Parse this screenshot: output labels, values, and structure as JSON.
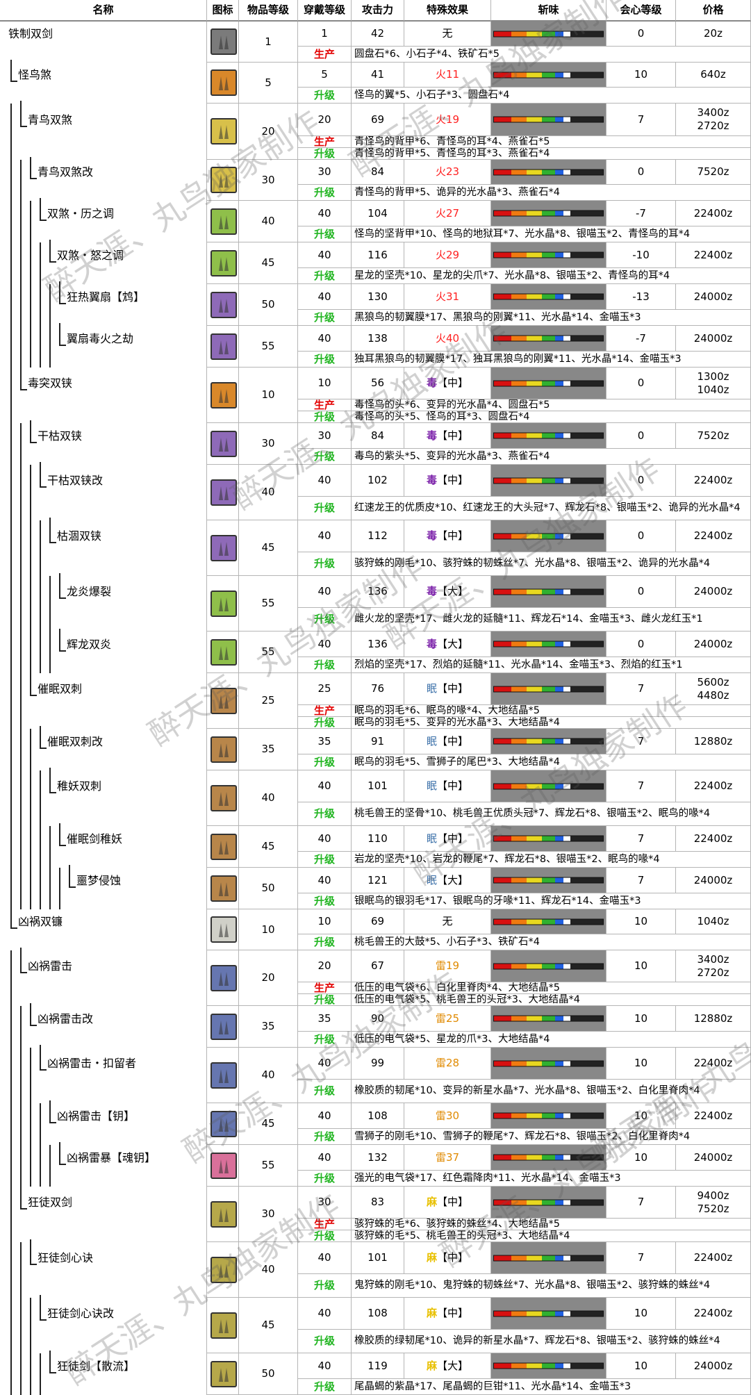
{
  "headers": {
    "name": "名称",
    "icon": "图标",
    "rarity": "物品等级",
    "slot": "穿戴等级",
    "attack": "攻击力",
    "special": "特殊效果",
    "sharpness": "斩味",
    "crit": "会心等级",
    "price": "价格"
  },
  "labels": {
    "produce": "生产",
    "upgrade": "升级"
  },
  "watermark": "醉天涯、丸鸟独家制作",
  "rows": [
    {
      "name": "铁制双剑",
      "depth": 0,
      "rarity": "1",
      "slot": "1",
      "atk": "42",
      "eff": "无",
      "effType": "none",
      "crit": "0",
      "price": [
        "20z"
      ],
      "produce": "圆盘石*6、小石子*4、铁矿石*5",
      "upgrade": "",
      "icon": "gray"
    },
    {
      "name": "怪鸟煞",
      "depth": 1,
      "rarity": "5",
      "slot": "5",
      "atk": "41",
      "eff": "火",
      "effVal": "11",
      "effType": "fire",
      "crit": "10",
      "price": [
        "640z"
      ],
      "produce": "",
      "upgrade": "怪鸟的翼*5、小石子*3、圆盘石*4",
      "icon": "orange"
    },
    {
      "name": "青鸟双煞",
      "depth": 2,
      "rarity": "20",
      "slot": "20",
      "atk": "69",
      "eff": "火",
      "effVal": "19",
      "effType": "fire",
      "crit": "7",
      "price": [
        "3400z",
        "2720z"
      ],
      "produce": "青怪鸟的背甲*6、青怪鸟的耳*4、燕雀石*5",
      "upgrade": "青怪鸟的背甲*5、青怪鸟的耳*3、燕雀石*4",
      "icon": "yellow"
    },
    {
      "name": "青鸟双煞改",
      "depth": 3,
      "rarity": "30",
      "slot": "30",
      "atk": "84",
      "eff": "火",
      "effVal": "23",
      "effType": "fire",
      "crit": "0",
      "price": [
        "7520z"
      ],
      "produce": "",
      "upgrade": "青怪鸟的背甲*5、诡异的光水晶*3、燕雀石*4",
      "icon": "yellow"
    },
    {
      "name": "双煞・历之调",
      "depth": 4,
      "rarity": "40",
      "slot": "40",
      "atk": "104",
      "eff": "火",
      "effVal": "27",
      "effType": "fire",
      "crit": "-7",
      "price": [
        "22400z"
      ],
      "produce": "",
      "upgrade": "怪鸟的坚背甲*10、怪鸟的地狱耳*7、光水晶*8、银喵玉*2、青怪鸟的耳*4",
      "icon": "green"
    },
    {
      "name": "双煞・怒之调",
      "depth": 5,
      "rarity": "45",
      "slot": "40",
      "atk": "116",
      "eff": "火",
      "effVal": "29",
      "effType": "fire",
      "crit": "-10",
      "price": [
        "22400z"
      ],
      "produce": "",
      "upgrade": "星龙的坚壳*10、星龙的尖爪*7、光水晶*8、银喵玉*2、青怪鸟的耳*4",
      "icon": "green"
    },
    {
      "name": "狂热翼扇【鸩】",
      "depth": 6,
      "rarity": "50",
      "slot": "40",
      "atk": "130",
      "eff": "火",
      "effVal": "31",
      "effType": "fire",
      "crit": "-13",
      "price": [
        "24000z"
      ],
      "produce": "",
      "upgrade": "黑狼鸟的韧翼膜*17、黑狼鸟的刚翼*11、光水晶*14、金喵玉*3",
      "icon": "purple"
    },
    {
      "name": "翼扇毒火之劫",
      "depth": 6,
      "rarity": "55",
      "slot": "40",
      "atk": "138",
      "eff": "火",
      "effVal": "40",
      "effType": "fire",
      "crit": "-7",
      "price": [
        "24000z"
      ],
      "produce": "",
      "upgrade": "独耳黑狼鸟的韧翼膜*17、独耳黑狼鸟的刚翼*11、光水晶*14、金喵玉*3",
      "icon": "purple"
    },
    {
      "name": "毒突双铗",
      "depth": 2,
      "rarity": "10",
      "slot": "10",
      "atk": "56",
      "eff": "毒",
      "effVal": "【中】",
      "effType": "poison",
      "crit": "0",
      "price": [
        "1300z",
        "1040z"
      ],
      "produce": "毒怪鸟的头*6、变异的光水晶*4、圆盘石*5",
      "upgrade": "毒怪鸟的头*5、怪鸟的耳*3、圆盘石*4",
      "icon": "orange"
    },
    {
      "name": "干枯双铗",
      "depth": 3,
      "rarity": "30",
      "slot": "30",
      "atk": "84",
      "eff": "毒",
      "effVal": "【中】",
      "effType": "poison",
      "crit": "0",
      "price": [
        "7520z"
      ],
      "produce": "",
      "upgrade": "毒鸟的紫头*5、变异的光水晶*3、燕雀石*4",
      "icon": "purple"
    },
    {
      "name": "干枯双铗改",
      "depth": 4,
      "rarity": "40",
      "slot": "40",
      "atk": "102",
      "eff": "毒",
      "effVal": "【中】",
      "effType": "poison",
      "crit": "0",
      "price": [
        "22400z"
      ],
      "produce": "",
      "upgrade": "红速龙王的优质皮*10、红速龙王的大头冠*7、辉龙石*8、银喵玉*2、诡异的光水晶*4",
      "icon": "purple"
    },
    {
      "name": "枯涸双铗",
      "depth": 5,
      "rarity": "45",
      "slot": "40",
      "atk": "112",
      "eff": "毒",
      "effVal": "【中】",
      "effType": "poison",
      "crit": "0",
      "price": [
        "22400z"
      ],
      "produce": "",
      "upgrade": "骇狩蛛的刚毛*10、骇狩蛛的韧蛛丝*7、光水晶*8、银喵玉*2、诡异的光水晶*4",
      "icon": "purple"
    },
    {
      "name": "龙炎爆裂",
      "depth": 6,
      "rarity": "55",
      "slot": "40",
      "atk": "136",
      "eff": "毒",
      "effVal": "【大】",
      "effType": "poison",
      "crit": "0",
      "price": [
        "24000z"
      ],
      "produce": "",
      "upgrade": "雌火龙的坚壳*17、雌火龙的延髓*11、辉龙石*14、金喵玉*3、雌火龙红玉*1",
      "icon": "green"
    },
    {
      "name": "辉龙双炎",
      "depth": 6,
      "rarity": "55",
      "slot": "40",
      "atk": "136",
      "eff": "毒",
      "effVal": "【大】",
      "effType": "poison",
      "crit": "0",
      "price": [
        "24000z"
      ],
      "produce": "",
      "upgrade": "烈焰的坚壳*17、烈焰的延髓*11、光水晶*14、金喵玉*3、烈焰的红玉*1",
      "icon": "green"
    },
    {
      "name": "催眠双刺",
      "depth": 3,
      "rarity": "25",
      "slot": "25",
      "atk": "76",
      "eff": "眠",
      "effVal": "【中】",
      "effType": "sleep",
      "crit": "7",
      "price": [
        "5600z",
        "4480z"
      ],
      "produce": "眠鸟的羽毛*6、眠鸟的喙*4、大地结晶*5",
      "upgrade": "眠鸟的羽毛*5、变异的光水晶*3、大地结晶*4",
      "icon": "brown"
    },
    {
      "name": "催眠双刺改",
      "depth": 4,
      "rarity": "35",
      "slot": "35",
      "atk": "91",
      "eff": "眠",
      "effVal": "【中】",
      "effType": "sleep",
      "crit": "7",
      "price": [
        "12880z"
      ],
      "produce": "",
      "upgrade": "眠鸟的羽毛*5、雪狮子的尾巴*3、大地结晶*4",
      "icon": "brown"
    },
    {
      "name": "稚妖双刺",
      "depth": 5,
      "rarity": "40",
      "slot": "40",
      "atk": "101",
      "eff": "眠",
      "effVal": "【中】",
      "effType": "sleep",
      "crit": "7",
      "price": [
        "22400z"
      ],
      "produce": "",
      "upgrade": "桃毛兽王的坚骨*10、桃毛兽王优质头冠*7、辉龙石*8、银喵玉*2、眠鸟的喙*4",
      "icon": "brown"
    },
    {
      "name": "催眠剑稚妖",
      "depth": 6,
      "rarity": "45",
      "slot": "40",
      "atk": "110",
      "eff": "眠",
      "effVal": "【中】",
      "effType": "sleep",
      "crit": "7",
      "price": [
        "22400z"
      ],
      "produce": "",
      "upgrade": "岩龙的坚壳*10、岩龙的鞭尾*7、辉龙石*8、银喵玉*2、眠鸟的喙*4",
      "icon": "brown"
    },
    {
      "name": "噩梦侵蚀",
      "depth": 7,
      "rarity": "50",
      "slot": "40",
      "atk": "121",
      "eff": "眠",
      "effVal": "【大】",
      "effType": "sleep",
      "crit": "7",
      "price": [
        "24000z"
      ],
      "produce": "",
      "upgrade": "银眠鸟的银羽毛*17、银眠鸟的牙喙*11、辉龙石*14、金喵玉*3",
      "icon": "brown"
    },
    {
      "name": "凶祸双镰",
      "depth": 1,
      "rarity": "10",
      "slot": "10",
      "atk": "69",
      "eff": "无",
      "effType": "none",
      "crit": "10",
      "price": [
        "1040z"
      ],
      "produce": "",
      "upgrade": "桃毛兽王的大鼓*5、小石子*3、铁矿石*4",
      "icon": "white"
    },
    {
      "name": "凶祸雷击",
      "depth": 2,
      "rarity": "20",
      "slot": "20",
      "atk": "67",
      "eff": "雷",
      "effVal": "19",
      "effType": "thunder",
      "crit": "10",
      "price": [
        "3400z",
        "2720z"
      ],
      "produce": "低压的电气袋*6、白化里脊肉*4、大地结晶*5",
      "upgrade": "低压的电气袋*5、桃毛兽王的头冠*3、大地结晶*4",
      "icon": "navy"
    },
    {
      "name": "凶祸雷击改",
      "depth": 3,
      "rarity": "35",
      "slot": "35",
      "atk": "90",
      "eff": "雷",
      "effVal": "25",
      "effType": "thunder",
      "crit": "10",
      "price": [
        "12880z"
      ],
      "produce": "",
      "upgrade": "低压的电气袋*5、星龙的爪*3、大地结晶*4",
      "icon": "navy"
    },
    {
      "name": "凶祸雷击・扣留者",
      "depth": 4,
      "rarity": "40",
      "slot": "40",
      "atk": "99",
      "eff": "雷",
      "effVal": "28",
      "effType": "thunder",
      "crit": "10",
      "price": [
        "22400z"
      ],
      "produce": "",
      "upgrade": "橡胶质的韧尾*10、变异的新星水晶*7、光水晶*8、银喵玉*2、白化里脊肉*4",
      "icon": "navy"
    },
    {
      "name": "凶祸雷击【钥】",
      "depth": 5,
      "rarity": "45",
      "slot": "40",
      "atk": "108",
      "eff": "雷",
      "effVal": "30",
      "effType": "thunder",
      "crit": "10",
      "price": [
        "22400z"
      ],
      "produce": "",
      "upgrade": "雪狮子的刚毛*10、雪狮子的鞭尾*7、辉龙石*8、银喵玉*2、白化里脊肉*4",
      "icon": "navy"
    },
    {
      "name": "凶祸雷暴【魂钥】",
      "depth": 6,
      "rarity": "55",
      "slot": "40",
      "atk": "132",
      "eff": "雷",
      "effVal": "37",
      "effType": "thunder",
      "crit": "10",
      "price": [
        "24000z"
      ],
      "produce": "",
      "upgrade": "强光的电气袋*17、红色霜降肉*11、光水晶*14、金喵玉*3",
      "icon": "pink"
    },
    {
      "name": "狂徒双剑",
      "depth": 2,
      "rarity": "30",
      "slot": "30",
      "atk": "83",
      "eff": "麻",
      "effVal": "【中】",
      "effType": "para",
      "crit": "7",
      "price": [
        "9400z",
        "7520z"
      ],
      "produce": "骇狩蛛的毛*6、骇狩蛛的蛛丝*4、大地结晶*5",
      "upgrade": "骇狩蛛的毛*5、桃毛兽王的头冠*3、大地结晶*4",
      "icon": "olive"
    },
    {
      "name": "狂徒剑心诀",
      "depth": 3,
      "rarity": "40",
      "slot": "40",
      "atk": "101",
      "eff": "麻",
      "effVal": "【中】",
      "effType": "para",
      "crit": "7",
      "price": [
        "22400z"
      ],
      "produce": "",
      "upgrade": "鬼狩蛛的刚毛*10、鬼狩蛛的韧蛛丝*7、光水晶*8、银喵玉*2、骇狩蛛的蛛丝*4",
      "icon": "olive"
    },
    {
      "name": "狂徒剑心诀改",
      "depth": 4,
      "rarity": "45",
      "slot": "40",
      "atk": "108",
      "eff": "麻",
      "effVal": "【中】",
      "effType": "para",
      "crit": "10",
      "price": [
        "22400z"
      ],
      "produce": "",
      "upgrade": "橡胶质的绿韧尾*10、诡异的新星水晶*7、辉龙石*8、银喵玉*2、骇狩蛛的蛛丝*4",
      "icon": "olive"
    },
    {
      "name": "狂徒剑【散流】",
      "depth": 5,
      "rarity": "50",
      "slot": "40",
      "atk": "119",
      "eff": "麻",
      "effVal": "【大】",
      "effType": "para",
      "crit": "10",
      "price": [
        "24000z"
      ],
      "produce": "",
      "upgrade": "尾晶蝎的紫晶*17、尾晶蝎的巨钳*11、光水晶*14、金喵玉*3",
      "icon": "olive"
    }
  ]
}
